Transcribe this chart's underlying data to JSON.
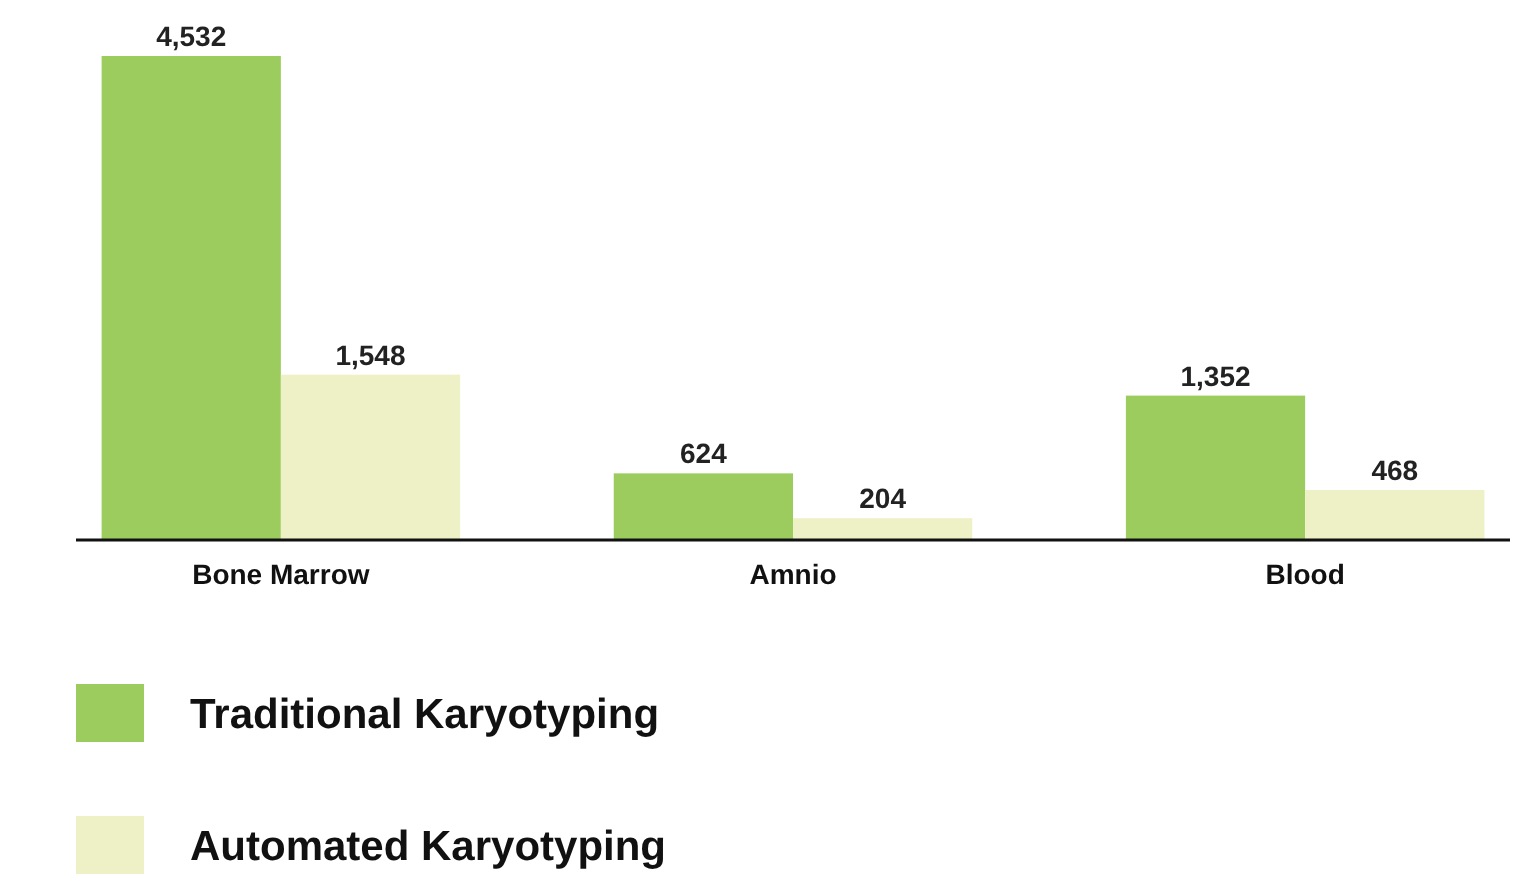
{
  "chart_data": {
    "type": "bar",
    "categories": [
      "Bone Marrow",
      "Amnio",
      "Blood"
    ],
    "series": [
      {
        "name": "Traditional Karyotyping",
        "color": "#9ccc5e",
        "values": [
          4532,
          624,
          1352
        ],
        "value_labels": [
          "4,532",
          "624",
          "1,352"
        ]
      },
      {
        "name": "Automated Karyotyping",
        "color": "#eef0c6",
        "values": [
          1548,
          204,
          468
        ],
        "value_labels": [
          "1,548",
          "204",
          "468"
        ]
      }
    ],
    "legend": "bottom left"
  }
}
